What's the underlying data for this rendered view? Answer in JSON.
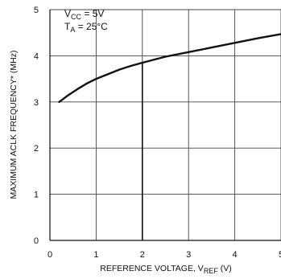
{
  "chart_data": {
    "type": "line",
    "title": "",
    "xlabel": "REFERENCE VOLTAGE, V",
    "xlabel_sub": "REF",
    "xlabel_unit": " (V)",
    "ylabel": "MAXIMUM ACLK FREQUENCY* (MHz)",
    "xlim": [
      0,
      5
    ],
    "ylim": [
      0,
      5
    ],
    "x_ticks": [
      "0",
      "1",
      "2",
      "3",
      "4",
      "5"
    ],
    "y_ticks": [
      "0",
      "1",
      "2",
      "3",
      "4",
      "5"
    ],
    "grid": true,
    "annotations": {
      "vcc_main": "V",
      "vcc_sub": "CC",
      "vcc_value": " = 5V",
      "ta_main": "T",
      "ta_sub": "A",
      "ta_value": " = 25°C"
    },
    "series": [
      {
        "color": "#111111",
        "x": [
          0.2,
          0.4,
          0.6,
          0.8,
          1.0,
          1.25,
          1.5,
          1.75,
          2.0,
          2.5,
          3.0,
          3.5,
          4.0,
          4.5,
          5.0
        ],
        "y": [
          3.0,
          3.15,
          3.28,
          3.4,
          3.5,
          3.6,
          3.7,
          3.78,
          3.85,
          3.98,
          4.08,
          4.18,
          4.28,
          4.38,
          4.47
        ]
      }
    ],
    "marker_line": {
      "x": 2.0,
      "y_from": 0,
      "y_to": 3.85
    }
  }
}
